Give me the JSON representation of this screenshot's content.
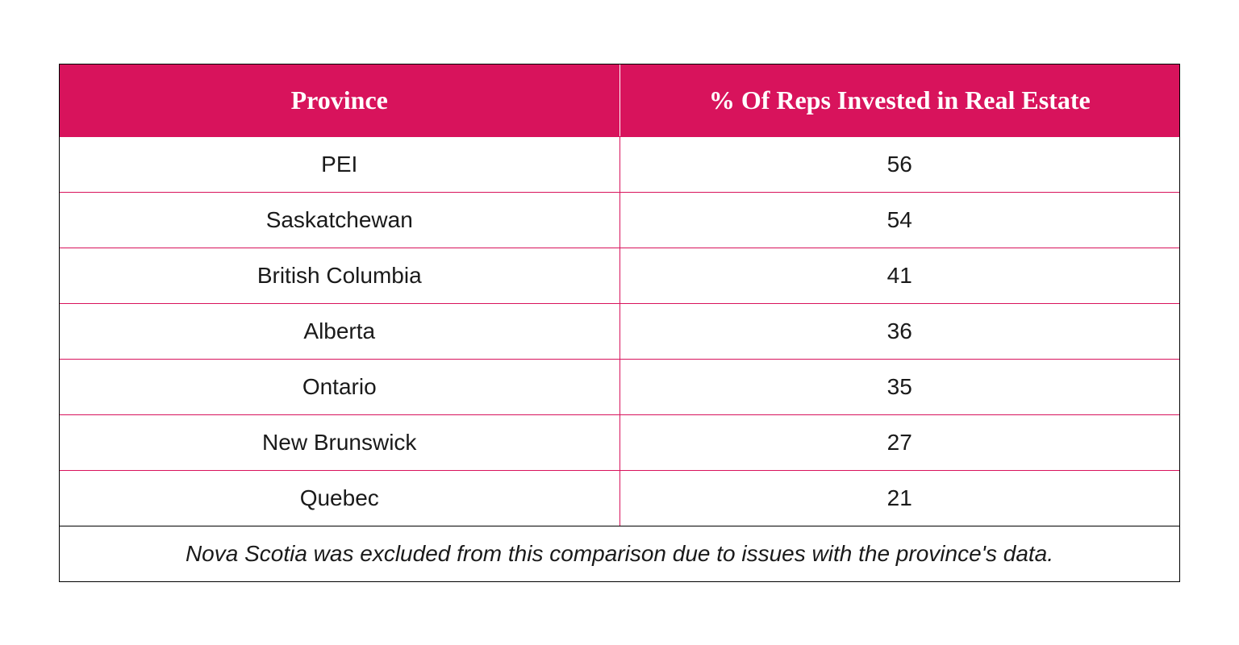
{
  "table": {
    "type": "table",
    "header_bg_color": "#d8135c",
    "header_text_color": "#ffffff",
    "row_border_color": "#d8135c",
    "row_text_color": "#1a1a1a",
    "header_font_family": "Georgia, serif",
    "header_font_weight": "bold",
    "header_font_size_pt": 24,
    "cell_font_size_pt": 21,
    "columns": [
      "Province",
      "% Of Reps Invested in Real Estate"
    ],
    "rows": [
      [
        "PEI",
        "56"
      ],
      [
        "Saskatchewan",
        "54"
      ],
      [
        "British Columbia",
        "41"
      ],
      [
        "Alberta",
        "36"
      ],
      [
        "Ontario",
        "35"
      ],
      [
        "New Brunswick",
        "27"
      ],
      [
        "Quebec",
        "21"
      ]
    ],
    "footnote": "Nova Scotia was excluded from this comparison due to issues with the province's data."
  }
}
